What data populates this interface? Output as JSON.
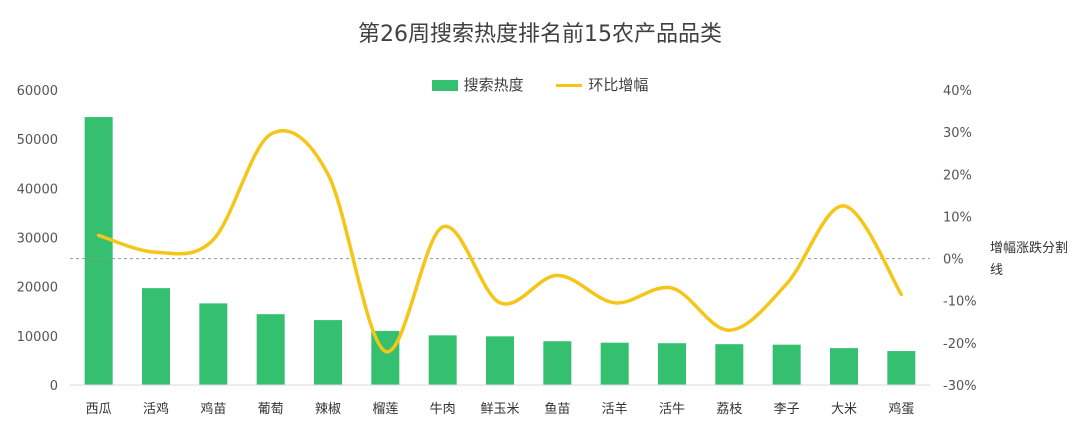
{
  "chart_data": {
    "type": "bar",
    "title": "第26周搜索热度排名前15农产品品类",
    "categories": [
      "西瓜",
      "活鸡",
      "鸡苗",
      "葡萄",
      "辣椒",
      "榴莲",
      "牛肉",
      "鲜玉米",
      "鱼苗",
      "活羊",
      "活牛",
      "荔枝",
      "李子",
      "大米",
      "鸡蛋"
    ],
    "series": [
      {
        "name": "搜索热度",
        "type": "bar",
        "axis": "left",
        "values": [
          54500,
          19700,
          16600,
          14400,
          13200,
          11000,
          10100,
          9900,
          8900,
          8600,
          8500,
          8300,
          8200,
          7500,
          6900
        ]
      },
      {
        "name": "环比增幅",
        "type": "line",
        "axis": "right",
        "values": [
          5.5,
          1.5,
          4.5,
          29.5,
          20.0,
          -22.0,
          7.5,
          -10.5,
          -4.0,
          -10.5,
          -7.0,
          -17.0,
          -6.0,
          12.5,
          -8.5
        ]
      }
    ],
    "y_left": {
      "range": [
        0,
        60000
      ],
      "ticks": [
        "0",
        "10000",
        "20000",
        "30000",
        "40000",
        "50000",
        "60000"
      ]
    },
    "y_right": {
      "range": [
        -30,
        40
      ],
      "ticks": [
        "-30%",
        "-20%",
        "-10%",
        "0%",
        "10%",
        "20%",
        "30%",
        "40%"
      ]
    },
    "divider_label": "增幅涨跌分割线",
    "legend": {
      "position": "top",
      "bar_label": "搜索热度",
      "line_label": "环比增幅"
    },
    "colors": {
      "bar": "#34c06f",
      "line": "#f5c518",
      "divider": "#999999"
    }
  }
}
